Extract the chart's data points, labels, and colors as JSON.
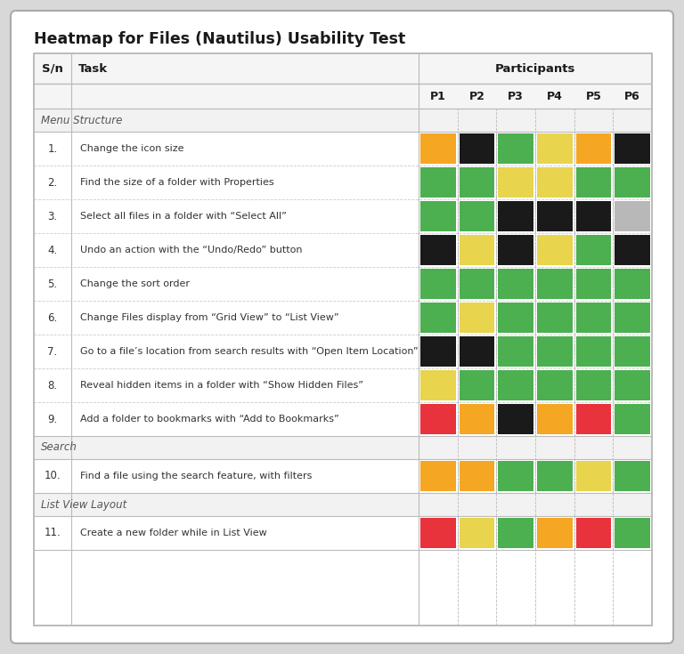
{
  "title": "Heatmap for Files (Nautilus) Usability Test",
  "participants": [
    "P1",
    "P2",
    "P3",
    "P4",
    "P5",
    "P6"
  ],
  "tasks": [
    {
      "sn": "1.",
      "label": "Change the icon size",
      "colors": [
        "#F5A623",
        "#1A1A1A",
        "#4CAF50",
        "#E8D44D",
        "#F5A623",
        "#1A1A1A"
      ]
    },
    {
      "sn": "2.",
      "label": "Find the size of a folder with Properties",
      "colors": [
        "#4CAF50",
        "#4CAF50",
        "#E8D44D",
        "#E8D44D",
        "#4CAF50",
        "#4CAF50"
      ]
    },
    {
      "sn": "3.",
      "label": "Select all files in a folder with “Select All”",
      "colors": [
        "#4CAF50",
        "#4CAF50",
        "#1A1A1A",
        "#1A1A1A",
        "#1A1A1A",
        "#B8B8B8"
      ]
    },
    {
      "sn": "4.",
      "label": "Undo an action with the “Undo/Redo” button",
      "colors": [
        "#1A1A1A",
        "#E8D44D",
        "#1A1A1A",
        "#E8D44D",
        "#4CAF50",
        "#1A1A1A"
      ]
    },
    {
      "sn": "5.",
      "label": "Change the sort order",
      "colors": [
        "#4CAF50",
        "#4CAF50",
        "#4CAF50",
        "#4CAF50",
        "#4CAF50",
        "#4CAF50"
      ]
    },
    {
      "sn": "6.",
      "label": "Change Files display from “Grid View” to “List View”",
      "colors": [
        "#4CAF50",
        "#E8D44D",
        "#4CAF50",
        "#4CAF50",
        "#4CAF50",
        "#4CAF50"
      ]
    },
    {
      "sn": "7.",
      "label": "Go to a file’s location from search results with “Open Item Location”",
      "colors": [
        "#1A1A1A",
        "#1A1A1A",
        "#4CAF50",
        "#4CAF50",
        "#4CAF50",
        "#4CAF50"
      ]
    },
    {
      "sn": "8.",
      "label": "Reveal hidden items in a folder with “Show Hidden Files”",
      "colors": [
        "#E8D44D",
        "#4CAF50",
        "#4CAF50",
        "#4CAF50",
        "#4CAF50",
        "#4CAF50"
      ]
    },
    {
      "sn": "9.",
      "label": "Add a folder to bookmarks with “Add to Bookmarks”",
      "colors": [
        "#E8323C",
        "#F5A623",
        "#1A1A1A",
        "#F5A623",
        "#E8323C",
        "#4CAF50"
      ]
    },
    {
      "sn": "10.",
      "label": "Find a file using the search feature, with filters",
      "colors": [
        "#F5A623",
        "#F5A623",
        "#4CAF50",
        "#4CAF50",
        "#E8D44D",
        "#4CAF50"
      ]
    },
    {
      "sn": "11.",
      "label": "Create a new folder while in List View",
      "colors": [
        "#E8323C",
        "#E8D44D",
        "#4CAF50",
        "#F5A623",
        "#E8323C",
        "#4CAF50"
      ]
    }
  ],
  "sections": [
    {
      "label": "Menu Structure",
      "task_indices": [
        0,
        1,
        2,
        3,
        4,
        5,
        6,
        7,
        8
      ]
    },
    {
      "label": "Search",
      "task_indices": [
        9
      ]
    },
    {
      "label": "List View Layout",
      "task_indices": [
        10
      ]
    }
  ]
}
